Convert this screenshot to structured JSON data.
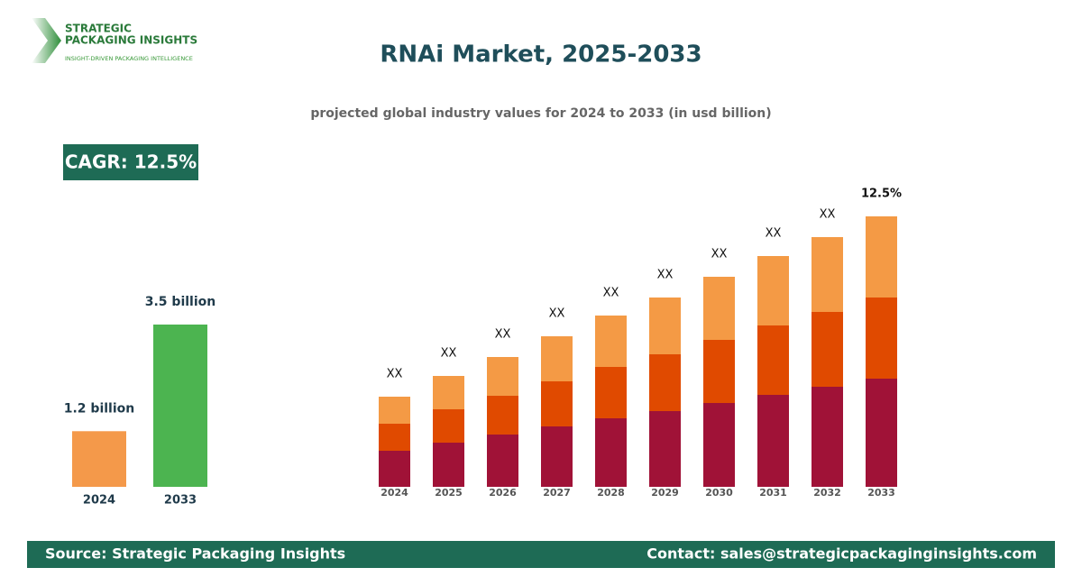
{
  "header": {
    "logo_line1": "STRATEGIC",
    "logo_line2": "PACKAGING INSIGHTS",
    "logo_tagline": "INSIGHT-DRIVEN PACKAGING INTELLIGENCE",
    "title": "RNAi Market, 2025-2033",
    "subtitle": "projected global industry values for 2024 to 2033 (in usd billion)"
  },
  "cagr": "CAGR: 12.5%",
  "chart_data": [
    {
      "type": "bar",
      "categories": [
        "2024",
        "2033"
      ],
      "values": [
        1.2,
        3.5
      ],
      "value_labels": [
        "1.2 billion",
        "3.5 billion"
      ],
      "colors": [
        "#f4994a",
        "#4cb450"
      ],
      "ylim": [
        0,
        3.5
      ]
    },
    {
      "type": "stacked-bar",
      "categories": [
        "2024",
        "2025",
        "2026",
        "2027",
        "2028",
        "2029",
        "2030",
        "2031",
        "2032",
        "2033"
      ],
      "series": [
        {
          "color": "#a01237",
          "values": [
            0.4,
            0.49,
            0.58,
            0.67,
            0.76,
            0.84,
            0.93,
            1.02,
            1.11,
            1.2
          ]
        },
        {
          "color": "#e04a00",
          "values": [
            0.3,
            0.37,
            0.43,
            0.5,
            0.57,
            0.63,
            0.7,
            0.77,
            0.83,
            0.9
          ]
        },
        {
          "color": "#f49a45",
          "values": [
            0.3,
            0.37,
            0.43,
            0.5,
            0.57,
            0.63,
            0.7,
            0.77,
            0.83,
            0.9
          ]
        }
      ],
      "annotations": [
        "XX",
        "XX",
        "XX",
        "XX",
        "XX",
        "XX",
        "XX",
        "XX",
        "XX",
        "12.5%"
      ],
      "ylim": [
        0,
        3
      ]
    }
  ],
  "footer": {
    "source": "Source: Strategic Packaging Insights",
    "contact": "Contact: sales@strategicpackaginginsights.com"
  }
}
